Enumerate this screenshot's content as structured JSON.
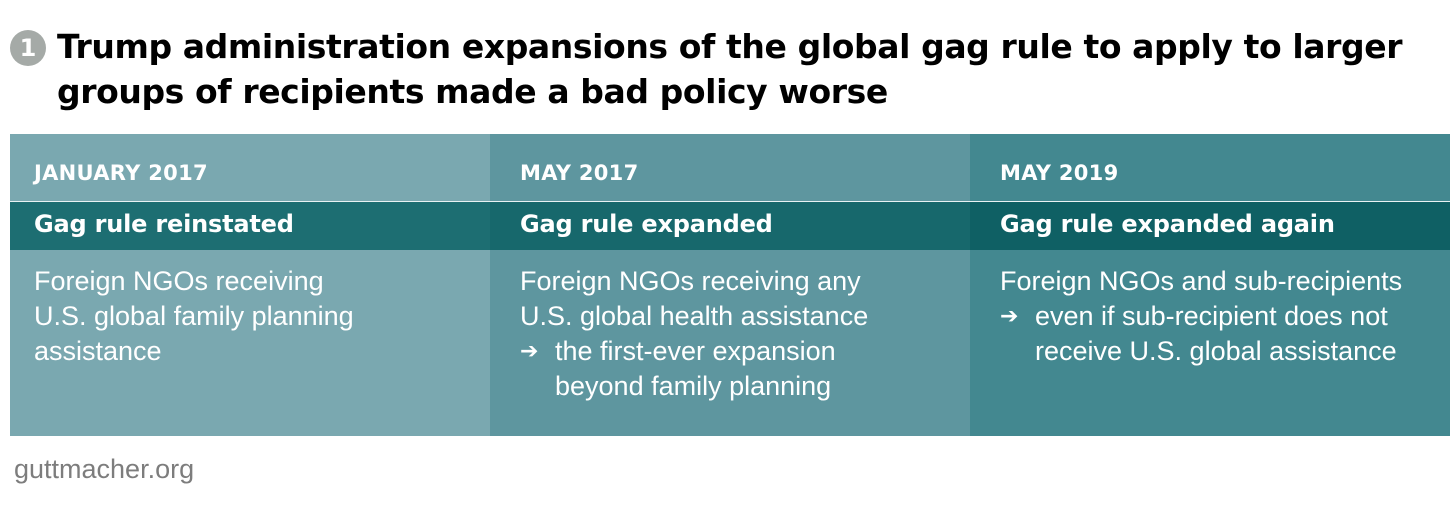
{
  "heading": {
    "number": "1",
    "title": "Trump administration expansions of the global gag rule to apply to larger groups of recipients made a bad policy worse"
  },
  "columns": [
    {
      "date": "JANUARY 2017",
      "event": "Gag rule reinstated",
      "lines": [
        "Foreign NGOs receiving",
        "U.S. global family planning",
        "assistance"
      ],
      "arrow_lines": []
    },
    {
      "date": "MAY 2017",
      "event": "Gag rule expanded",
      "lines": [
        "Foreign NGOs receiving any",
        "U.S. global health assistance"
      ],
      "arrow_lines": [
        "the first-ever expansion",
        "beyond family planning"
      ]
    },
    {
      "date": "MAY 2019",
      "event": "Gag rule expanded again",
      "lines": [
        "Foreign NGOs and sub-recipients"
      ],
      "arrow_lines": [
        "even if sub-recipient does not",
        "receive U.S. global assistance"
      ]
    }
  ],
  "arrow_glyph": "➔",
  "colors": {
    "column_1": "#7aa8b0",
    "column_2": "#5e969f",
    "column_3": "#438890",
    "band": "#1d6e72",
    "badge": "#a5aaa7",
    "source_text": "#7d7d7d"
  },
  "source": "guttmacher.org"
}
